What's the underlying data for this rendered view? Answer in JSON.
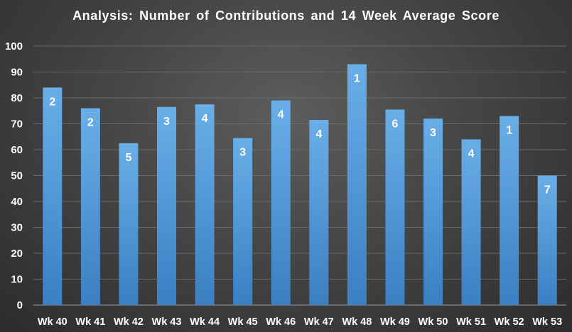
{
  "chart_data": {
    "type": "bar",
    "title": "Analysis:  Number of Contributions and 14 Week Average Score",
    "xlabel": "",
    "ylabel": "",
    "ylim": [
      0,
      100
    ],
    "yticks": [
      "0",
      "10",
      "20",
      "30",
      "40",
      "50",
      "60",
      "70",
      "80",
      "90",
      "100"
    ],
    "grid": true,
    "legend": "none",
    "categories": [
      "Wk 40",
      "Wk 41",
      "Wk 42",
      "Wk 43",
      "Wk 44",
      "Wk 45",
      "Wk 46",
      "Wk 47",
      "Wk 48",
      "Wk 49",
      "Wk 50",
      "Wk 51",
      "Wk 52",
      "Wk 53"
    ],
    "values": [
      84,
      76,
      62.5,
      76.5,
      77.5,
      64.5,
      79,
      71.5,
      93,
      75.5,
      72,
      64,
      73,
      50
    ],
    "data_labels": [
      "2",
      "2",
      "5",
      "3",
      "4",
      "3",
      "4",
      "4",
      "1",
      "6",
      "3",
      "4",
      "1",
      "7"
    ],
    "colors": {
      "bar_top": "#6aaee8",
      "bar_bottom": "#3c7fc2",
      "grid": "#6a6a6a",
      "axis": "#9a9a9a",
      "text": "#ffffff"
    }
  }
}
